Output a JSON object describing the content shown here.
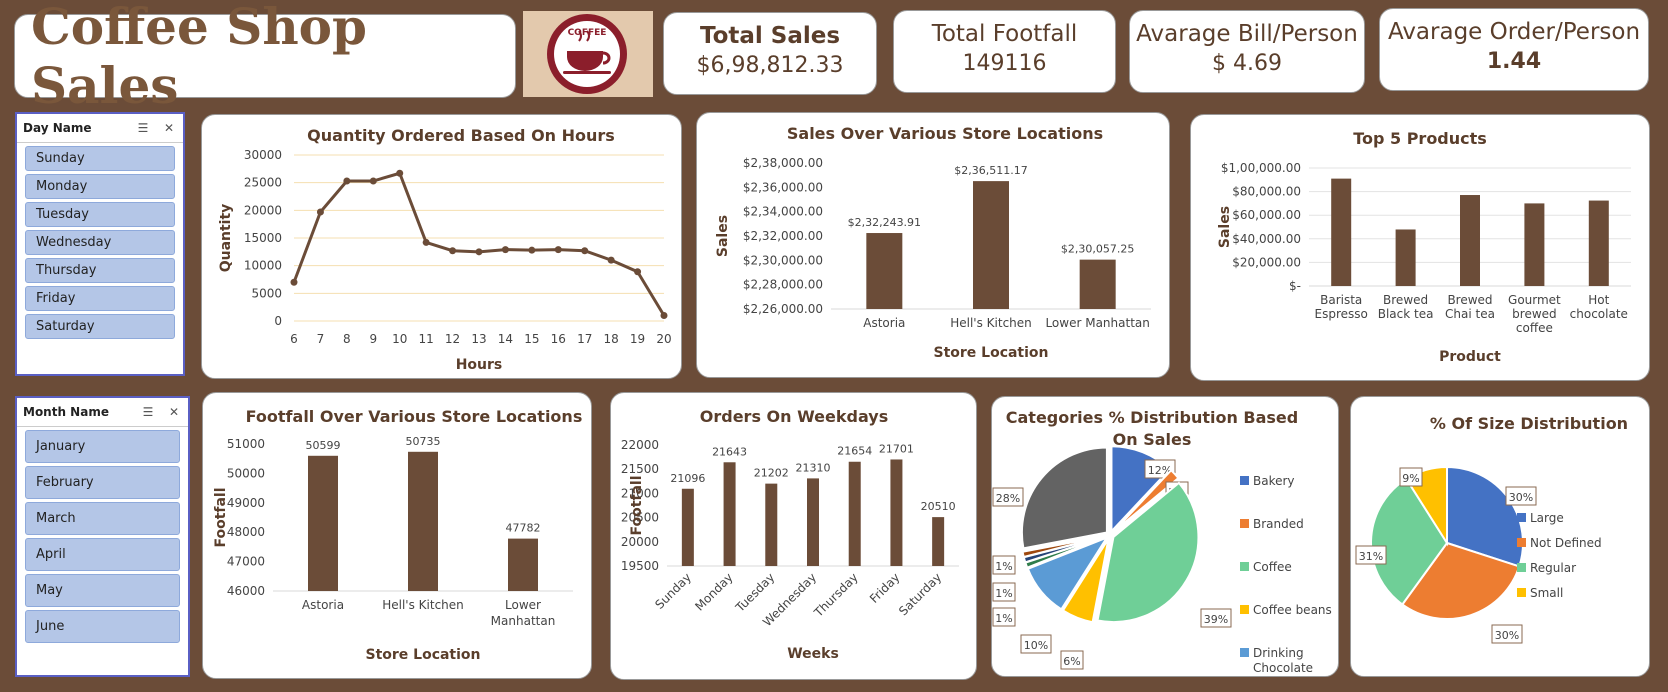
{
  "header": {
    "title": "Coffee Shop Sales",
    "logo_text": "COFFEE"
  },
  "kpis": [
    {
      "label": "Total Sales",
      "value": "$6,98,812.33"
    },
    {
      "label": "Total Footfall",
      "value": "149116"
    },
    {
      "label": "Avarage Bill/Person",
      "value": "$ 4.69"
    },
    {
      "label": "Avarage Order/Person",
      "value": "1.44"
    }
  ],
  "slicers": {
    "day": {
      "title": "Day Name",
      "items": [
        "Sunday",
        "Monday",
        "Tuesday",
        "Wednesday",
        "Thursday",
        "Friday",
        "Saturday"
      ]
    },
    "month": {
      "title": "Month Name",
      "items": [
        "January",
        "February",
        "March",
        "April",
        "May",
        "June"
      ]
    }
  },
  "chart_data": [
    {
      "id": "hours",
      "type": "line",
      "title": "Quantity Ordered Based On Hours",
      "xlabel": "Hours",
      "ylabel": "Quantity",
      "x": [
        "6",
        "7",
        "8",
        "9",
        "10",
        "11",
        "12",
        "13",
        "14",
        "15",
        "16",
        "17",
        "18",
        "19",
        "20"
      ],
      "values": [
        7000,
        19700,
        25300,
        25300,
        26700,
        14200,
        12700,
        12500,
        12900,
        12800,
        12900,
        12700,
        11000,
        8900,
        1000
      ],
      "ylim": [
        0,
        30000
      ],
      "yticks": [
        "0",
        "5000",
        "10000",
        "15000",
        "20000",
        "25000",
        "30000"
      ],
      "color": "#6b4c38"
    },
    {
      "id": "store_sales",
      "type": "bar",
      "title": "Sales Over Various Store Locations",
      "xlabel": "Store Location",
      "ylabel": "Sales",
      "categories": [
        "Astoria",
        "Hell's Kitchen",
        "Lower Manhattan"
      ],
      "values": [
        232243.91,
        236511.17,
        230057.25
      ],
      "labels": [
        "$2,32,243.91",
        "$2,36,511.17",
        "$2,30,057.25"
      ],
      "ylim": [
        226000,
        238000
      ],
      "yticks": [
        "$2,26,000.00",
        "$2,28,000.00",
        "$2,30,000.00",
        "$2,32,000.00",
        "$2,34,000.00",
        "$2,36,000.00",
        "$2,38,000.00"
      ],
      "color": "#6b4c38"
    },
    {
      "id": "top5",
      "type": "bar",
      "title": "Top 5 Products",
      "xlabel": "Product",
      "ylabel": "Sales",
      "categories": [
        [
          "Barista",
          "Espresso"
        ],
        [
          "Brewed",
          "Black tea"
        ],
        [
          "Brewed",
          "Chai tea"
        ],
        [
          "Gourmet",
          "brewed",
          "coffee"
        ],
        [
          "Hot",
          "chocolate"
        ]
      ],
      "values": [
        91000,
        47900,
        77100,
        70000,
        72400
      ],
      "ylim": [
        0,
        100000
      ],
      "yticks": [
        "$-",
        "$20,000.00",
        "$40,000.00",
        "$60,000.00",
        "$80,000.00",
        "$1,00,000.00"
      ],
      "color": "#6b4c38"
    },
    {
      "id": "footfall",
      "type": "bar",
      "title": "Footfall Over Various Store Locations",
      "xlabel": "Store Location",
      "ylabel": "Footfall",
      "categories": [
        [
          "Astoria"
        ],
        [
          "Hell's Kitchen"
        ],
        [
          "Lower",
          "Manhattan"
        ]
      ],
      "values": [
        50599,
        50735,
        47782
      ],
      "labels": [
        "50599",
        "50735",
        "47782"
      ],
      "ylim": [
        46000,
        51000
      ],
      "yticks": [
        "46000",
        "47000",
        "48000",
        "49000",
        "50000",
        "51000"
      ],
      "color": "#6b4c38"
    },
    {
      "id": "weekdays",
      "type": "bar",
      "title": "Orders On Weekdays",
      "xlabel": "Weeks",
      "ylabel": "Footfall",
      "categories": [
        "Sunday",
        "Monday",
        "Tuesday",
        "Wednesday",
        "Thursday",
        "Friday",
        "Saturday"
      ],
      "values": [
        21096,
        21643,
        21202,
        21310,
        21654,
        21701,
        20510
      ],
      "labels": [
        "21096",
        "21643",
        "21202",
        "21310",
        "21654",
        "21701",
        "20510"
      ],
      "ylim": [
        19500,
        22000
      ],
      "yticks": [
        "19500",
        "20000",
        "20500",
        "21000",
        "21500",
        "22000"
      ],
      "color": "#6b4c38"
    },
    {
      "id": "categories",
      "type": "pie",
      "title": [
        "Categories % Distribution Based",
        "On Sales"
      ],
      "legend": [
        {
          "name": "Bakery",
          "color": "#4472c4"
        },
        {
          "name": "Branded",
          "color": "#ed7d31"
        },
        {
          "name": "Coffee",
          "color": "#6fcf97"
        },
        {
          "name": "Coffee beans",
          "color": "#ffc000"
        },
        {
          "name": "Drinking Chocolate",
          "color": "#5b9bd5"
        }
      ],
      "slices": [
        {
          "value": 12,
          "label": "12%",
          "color": "#4472c4"
        },
        {
          "value": 2,
          "label": "2%",
          "color": "#ed7d31"
        },
        {
          "value": 39,
          "label": "39%",
          "color": "#6fcf97"
        },
        {
          "value": 6,
          "label": "6%",
          "color": "#ffc000"
        },
        {
          "value": 10,
          "label": "10%",
          "color": "#5b9bd5"
        },
        {
          "value": 1,
          "label": "1%",
          "color": "#2f7d4b"
        },
        {
          "value": 1,
          "label": "1%",
          "color": "#264478"
        },
        {
          "value": 1,
          "label": "1%",
          "color": "#9e480e"
        },
        {
          "value": 28,
          "label": "28%",
          "color": "#636363"
        }
      ]
    },
    {
      "id": "size",
      "type": "pie",
      "title": "% Of Size Distribution",
      "legend": [
        {
          "name": "Large",
          "color": "#4472c4"
        },
        {
          "name": "Not Defined",
          "color": "#ed7d31"
        },
        {
          "name": "Regular",
          "color": "#6fcf97"
        },
        {
          "name": "Small",
          "color": "#ffc000"
        }
      ],
      "slices": [
        {
          "value": 30,
          "label": "30%",
          "color": "#4472c4"
        },
        {
          "value": 30,
          "label": "30%",
          "color": "#ed7d31"
        },
        {
          "value": 31,
          "label": "31%",
          "color": "#6fcf97"
        },
        {
          "value": 9,
          "label": "9%",
          "color": "#ffc000"
        }
      ]
    }
  ]
}
